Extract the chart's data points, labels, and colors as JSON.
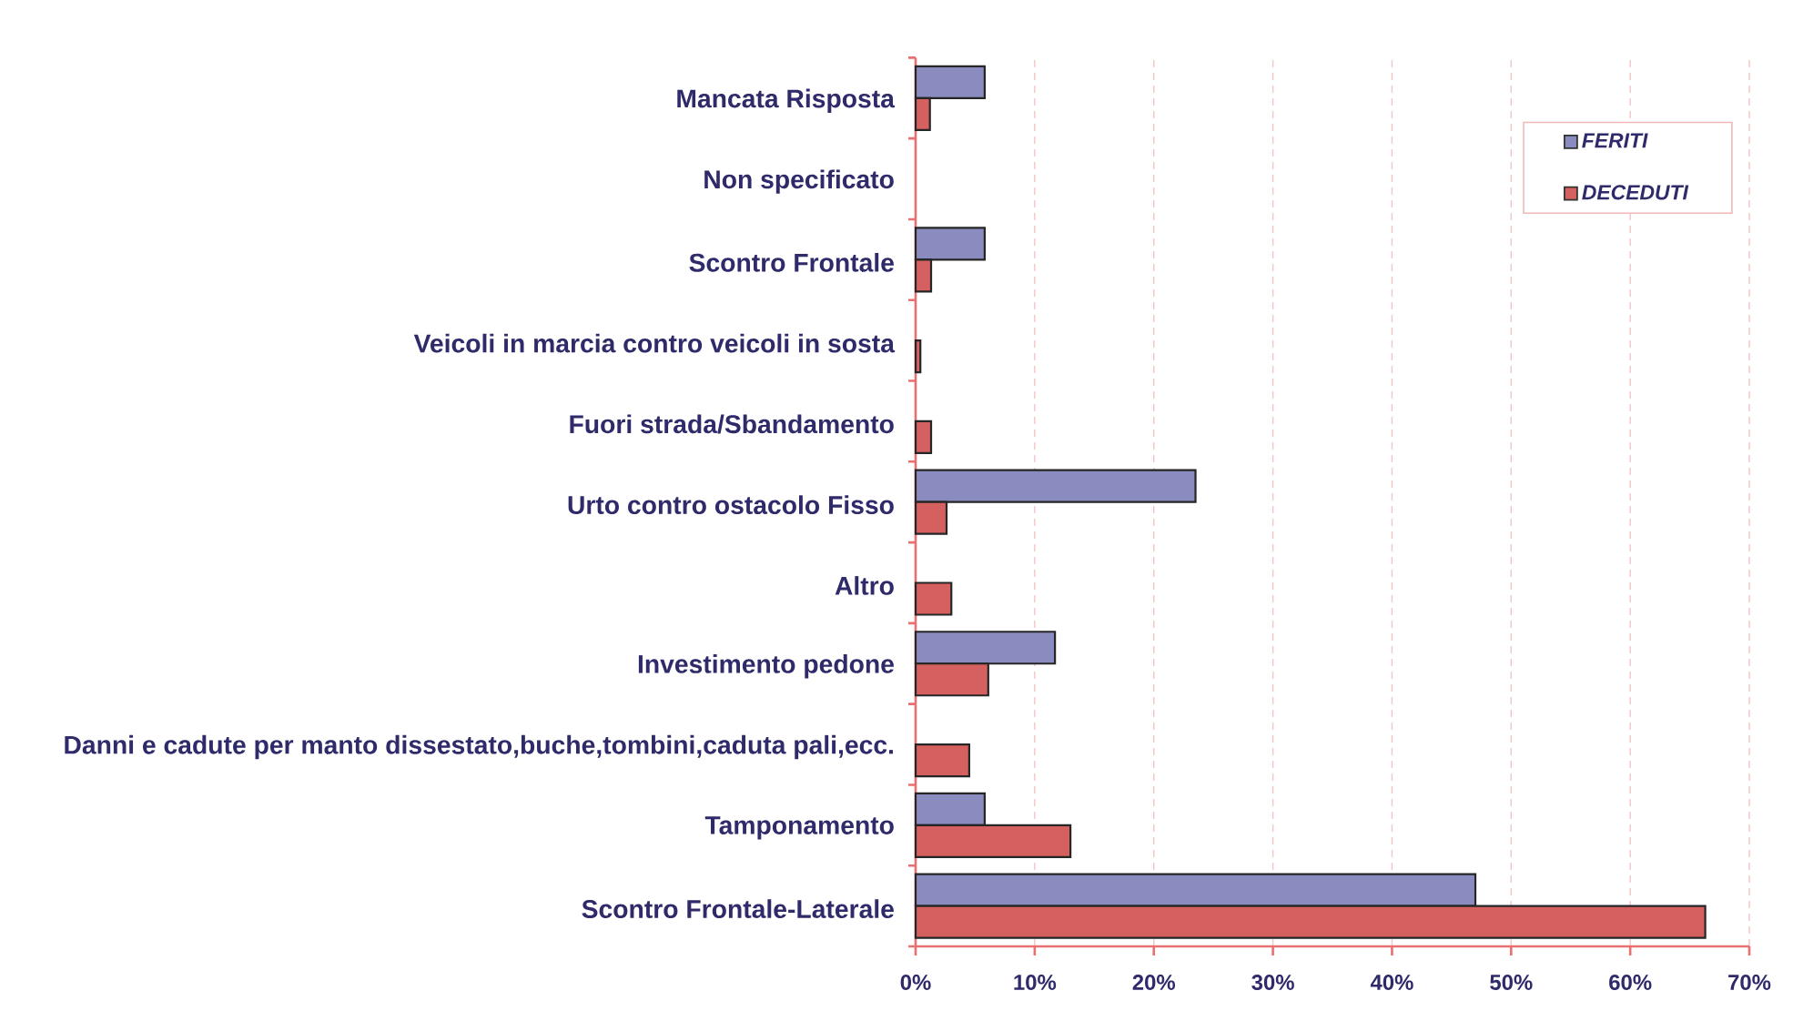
{
  "chart_data": {
    "type": "bar",
    "orientation": "horizontal",
    "categories": [
      "Mancata Risposta",
      "Non specificato",
      "Scontro Frontale",
      "Veicoli in marcia contro veicoli in sosta",
      "Fuori strada/Sbandamento",
      "Urto contro ostacolo Fisso",
      "Altro",
      "Investimento pedone",
      "Danni e cadute per manto dissestato,buche,tombini,caduta pali,ecc.",
      "Tamponamento",
      "Scontro Frontale-Laterale"
    ],
    "series": [
      {
        "name": "FERITI",
        "color": "#8a8cc0",
        "values": [
          5.8,
          null,
          5.8,
          null,
          null,
          23.5,
          null,
          11.7,
          null,
          5.8,
          47.0
        ]
      },
      {
        "name": "DECEDUTI",
        "color": "#d46060",
        "values": [
          1.2,
          null,
          1.3,
          0.4,
          1.3,
          2.6,
          3.0,
          6.1,
          4.5,
          13.0,
          66.3
        ]
      }
    ],
    "xlim": [
      0,
      70
    ],
    "xticks": [
      {
        "value": 0,
        "label": "0%"
      },
      {
        "value": 10,
        "label": "10%"
      },
      {
        "value": 20,
        "label": "20%"
      },
      {
        "value": 30,
        "label": "30%"
      },
      {
        "value": 40,
        "label": "40%"
      },
      {
        "value": 50,
        "label": "50%"
      },
      {
        "value": 60,
        "label": "60%"
      },
      {
        "value": 70,
        "label": "70%"
      }
    ],
    "grid": "x",
    "legend": "top right"
  }
}
